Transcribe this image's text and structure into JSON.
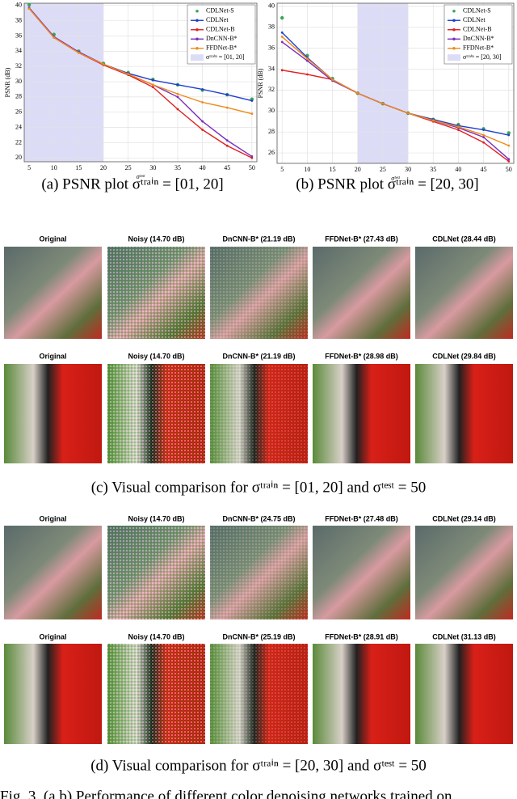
{
  "chart_data": [
    {
      "type": "line",
      "caption": "(a) PSNR plot σᵗʳᵃⁱⁿ = [01, 20]",
      "xlabel": "σᵗᵉˢᵗ",
      "ylabel": "PSNR (dB)",
      "x": [
        5,
        10,
        15,
        20,
        25,
        30,
        35,
        40,
        45,
        50
      ],
      "xlim": [
        4,
        51
      ],
      "xticks": [
        5,
        10,
        15,
        20,
        25,
        30,
        35,
        40,
        45,
        50
      ],
      "ylim": [
        19.5,
        40.3
      ],
      "yticks": [
        20,
        22,
        24,
        26,
        28,
        30,
        32,
        34,
        36,
        38,
        40
      ],
      "grid": true,
      "shade": {
        "name": "σᵗʳᵃⁱⁿ = [01, 20]",
        "x": [
          1,
          20
        ],
        "color": "#dcdcf7"
      },
      "series": [
        {
          "name": "CDLNet-S",
          "color": "#3aa655",
          "style": "markers",
          "values": [
            40.1,
            36.2,
            34.0,
            32.4,
            31.2,
            30.3,
            29.6,
            28.9,
            28.3,
            27.7
          ]
        },
        {
          "name": "CDLNet",
          "color": "#1f3fd0",
          "style": "line",
          "values": [
            39.7,
            35.9,
            33.9,
            32.3,
            31.1,
            30.2,
            29.6,
            29.0,
            28.3,
            27.5
          ]
        },
        {
          "name": "CDLNet-B",
          "color": "#e02020",
          "style": "line",
          "values": [
            39.6,
            35.8,
            33.8,
            32.2,
            30.9,
            29.3,
            26.4,
            23.7,
            21.6,
            20.0
          ]
        },
        {
          "name": "DnCNN-B*",
          "color": "#7b2fbe",
          "style": "line",
          "values": [
            39.7,
            35.9,
            33.9,
            32.3,
            31.0,
            29.6,
            28.0,
            24.8,
            22.3,
            20.2
          ]
        },
        {
          "name": "FFDNet-B*",
          "color": "#f08a1a",
          "style": "line",
          "values": [
            39.6,
            35.8,
            33.8,
            32.3,
            31.0,
            29.6,
            28.4,
            27.3,
            26.6,
            25.8
          ]
        }
      ]
    },
    {
      "type": "line",
      "caption": "(b) PSNR plot σᵗʳᵃⁱⁿ = [20, 30]",
      "xlabel": "σᵗᵉˢᵗ",
      "ylabel": "PSNR (dB)",
      "x": [
        5,
        10,
        15,
        20,
        25,
        30,
        35,
        40,
        45,
        50
      ],
      "xlim": [
        4,
        51
      ],
      "xticks": [
        5,
        10,
        15,
        20,
        25,
        30,
        35,
        40,
        45,
        50
      ],
      "ylim": [
        25,
        40.3
      ],
      "yticks": [
        26,
        28,
        30,
        32,
        34,
        36,
        38,
        40
      ],
      "grid": true,
      "shade": {
        "name": "σᵗʳᵃⁱⁿ = [20, 30]",
        "x": [
          20,
          30
        ],
        "color": "#dcdcf7"
      },
      "series": [
        {
          "name": "CDLNet-S",
          "color": "#3aa655",
          "style": "markers",
          "values": [
            38.9,
            35.3,
            33.1,
            31.7,
            30.7,
            29.8,
            29.2,
            28.7,
            28.3,
            27.9
          ]
        },
        {
          "name": "CDLNet",
          "color": "#1f3fd0",
          "style": "line",
          "values": [
            37.5,
            35.1,
            33.0,
            31.7,
            30.7,
            29.8,
            29.2,
            28.6,
            28.2,
            27.7
          ]
        },
        {
          "name": "CDLNet-B",
          "color": "#e02020",
          "style": "line",
          "values": [
            33.9,
            33.5,
            33.0,
            31.7,
            30.7,
            29.8,
            29.0,
            28.2,
            27.0,
            25.2
          ]
        },
        {
          "name": "DnCNN-B*",
          "color": "#7b2fbe",
          "style": "line",
          "values": [
            36.6,
            34.8,
            32.9,
            31.7,
            30.7,
            29.8,
            29.1,
            28.4,
            27.5,
            25.4
          ]
        },
        {
          "name": "FFDNet-B*",
          "color": "#f08a1a",
          "style": "line",
          "values": [
            37.1,
            35.0,
            33.0,
            31.7,
            30.7,
            29.8,
            29.1,
            28.5,
            27.7,
            26.7
          ]
        }
      ]
    }
  ],
  "panels": [
    {
      "rows": [
        {
          "labels": [
            "Original",
            "Noisy (14.70 dB)",
            "DnCNN-B* (21.19 dB)",
            "FFDNet-B* (27.43 dB)",
            "CDLNet (28.44 dB)"
          ]
        },
        {
          "labels": [
            "Original",
            "Noisy (14.70 dB)",
            "DnCNN-B* (21.19 dB)",
            "FFDNet-B* (28.98 dB)",
            "CDLNet (29.84 dB)"
          ]
        }
      ],
      "caption": "(c) Visual comparison for σᵗʳᵃⁱⁿ = [01, 20] and σᵗᵉˢᵗ = 50"
    },
    {
      "rows": [
        {
          "labels": [
            "Original",
            "Noisy (14.70 dB)",
            "DnCNN-B* (24.75 dB)",
            "FFDNet-B* (27.48 dB)",
            "CDLNet (29.14 dB)"
          ]
        },
        {
          "labels": [
            "Original",
            "Noisy (14.70 dB)",
            "DnCNN-B* (25.19 dB)",
            "FFDNet-B* (28.91 dB)",
            "CDLNet (31.13 dB)"
          ]
        }
      ],
      "caption": "(d) Visual comparison for σᵗʳᵃⁱⁿ = [20, 30] and σᵗᵉˢᵗ = 50"
    }
  ],
  "figure_caption": "Fig. 3.  (a,b) Performance of different color denoising networks trained on"
}
